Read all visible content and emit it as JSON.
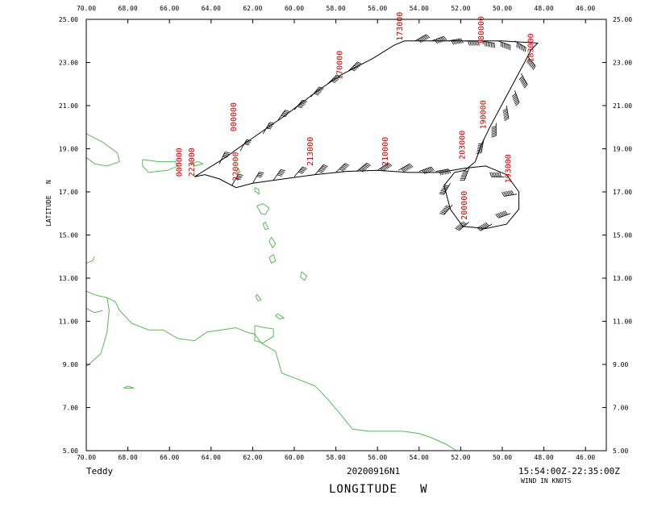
{
  "storm_name": "Teddy",
  "flight_id": "20200916N1",
  "time_range": "15:54:00Z-22:35:00Z",
  "wind_units": "WIND IN KNOTS",
  "xlabel": "LONGITUDE   W",
  "ylabel": "LATITUDE   N",
  "colors": {
    "coast": "#5cb85c",
    "track": "#000000",
    "labels": "#cc0000",
    "frame": "#000000"
  },
  "chart_data": {
    "type": "map",
    "xlim": [
      70,
      45
    ],
    "ylim": [
      5,
      25
    ],
    "x_ticks": [
      "70.00",
      "68.00",
      "66.00",
      "64.00",
      "62.00",
      "60.00",
      "58.00",
      "56.00",
      "54.00",
      "52.00",
      "50.00",
      "48.00",
      "46.00"
    ],
    "y_ticks": [
      "5.00",
      "7.00",
      "9.00",
      "11.00",
      "13.00",
      "15.00",
      "17.00",
      "19.00",
      "21.00",
      "23.00",
      "25.00"
    ],
    "time_labels": [
      {
        "text": "000000",
        "lon": 62.8,
        "lat": 19.8
      },
      {
        "text": "223000",
        "lon": 64.8,
        "lat": 17.7
      },
      {
        "text": "000000",
        "lon": 65.4,
        "lat": 17.7
      },
      {
        "text": "220000",
        "lon": 62.7,
        "lat": 17.5
      },
      {
        "text": "213000",
        "lon": 59.1,
        "lat": 18.2
      },
      {
        "text": "210000",
        "lon": 55.5,
        "lat": 18.2
      },
      {
        "text": "203000",
        "lon": 51.8,
        "lat": 18.5
      },
      {
        "text": "200000",
        "lon": 51.7,
        "lat": 15.7
      },
      {
        "text": "193000",
        "lon": 49.6,
        "lat": 17.4
      },
      {
        "text": "190000",
        "lon": 50.8,
        "lat": 19.9
      },
      {
        "text": "183000",
        "lon": 48.5,
        "lat": 23.0
      },
      {
        "text": "180000",
        "lon": 50.9,
        "lat": 23.8
      },
      {
        "text": "173000",
        "lon": 54.8,
        "lat": 24.0
      },
      {
        "text": "170000",
        "lon": 57.7,
        "lat": 22.2
      }
    ],
    "track": [
      [
        64.8,
        17.7
      ],
      [
        63.3,
        18.6
      ],
      [
        62.3,
        19.3
      ],
      [
        60.5,
        20.5
      ],
      [
        59.0,
        21.6
      ],
      [
        57.8,
        22.4
      ],
      [
        57.0,
        22.8
      ],
      [
        56.2,
        23.2
      ],
      [
        55.2,
        23.8
      ],
      [
        54.7,
        24.0
      ],
      [
        52.5,
        24.0
      ],
      [
        50.0,
        24.0
      ],
      [
        48.3,
        23.9
      ],
      [
        48.6,
        23.6
      ],
      [
        49.6,
        21.8
      ],
      [
        50.6,
        20.0
      ],
      [
        51.0,
        19.2
      ],
      [
        51.3,
        18.4
      ],
      [
        51.8,
        18.0
      ],
      [
        52.3,
        17.9
      ],
      [
        52.8,
        17.3
      ],
      [
        52.5,
        16.2
      ],
      [
        51.9,
        15.4
      ],
      [
        50.8,
        15.3
      ],
      [
        49.8,
        15.5
      ],
      [
        49.2,
        16.2
      ],
      [
        49.2,
        17.0
      ],
      [
        49.8,
        17.8
      ],
      [
        50.8,
        18.2
      ],
      [
        51.8,
        18.1
      ],
      [
        53.0,
        17.9
      ],
      [
        54.5,
        17.9
      ],
      [
        56.0,
        18.0
      ],
      [
        57.5,
        17.95
      ],
      [
        59.0,
        17.8
      ],
      [
        60.5,
        17.6
      ],
      [
        62.0,
        17.4
      ],
      [
        62.8,
        17.2
      ],
      [
        63.6,
        17.6
      ],
      [
        64.3,
        17.8
      ],
      [
        64.8,
        17.7
      ]
    ],
    "winds": [
      [
        63.6,
        18.3,
        25,
        40
      ],
      [
        62.6,
        18.9,
        30,
        45
      ],
      [
        61.5,
        19.7,
        30,
        50
      ],
      [
        60.8,
        20.3,
        35,
        50
      ],
      [
        60.0,
        20.8,
        40,
        60
      ],
      [
        59.2,
        21.4,
        40,
        60
      ],
      [
        58.4,
        22.0,
        45,
        65
      ],
      [
        57.4,
        22.6,
        45,
        70
      ],
      [
        54.2,
        24.0,
        60,
        110
      ],
      [
        53.4,
        24.0,
        70,
        110
      ],
      [
        52.6,
        24.0,
        80,
        110
      ],
      [
        51.8,
        24.0,
        90,
        120
      ],
      [
        51.0,
        24.0,
        100,
        120
      ],
      [
        50.2,
        24.0,
        110,
        130
      ],
      [
        49.4,
        24.0,
        120,
        140
      ],
      [
        48.8,
        23.3,
        140,
        160
      ],
      [
        49.1,
        22.5,
        150,
        180
      ],
      [
        49.4,
        21.7,
        160,
        200
      ],
      [
        49.8,
        21.0,
        170,
        220
      ],
      [
        50.3,
        20.2,
        180,
        230
      ],
      [
        50.9,
        19.4,
        190,
        240
      ],
      [
        51.6,
        18.1,
        200,
        250
      ],
      [
        52.5,
        17.4,
        210,
        260
      ],
      [
        52.4,
        16.4,
        220,
        270
      ],
      [
        51.6,
        15.6,
        230,
        280
      ],
      [
        50.5,
        15.5,
        240,
        290
      ],
      [
        49.6,
        16.0,
        250,
        300
      ],
      [
        49.3,
        16.9,
        260,
        310
      ],
      [
        49.9,
        17.7,
        270,
        320
      ],
      [
        53.2,
        17.95,
        80,
        110
      ],
      [
        54.0,
        17.95,
        70,
        100
      ],
      [
        55.0,
        18.0,
        60,
        90
      ],
      [
        56.0,
        18.0,
        55,
        80
      ],
      [
        57.0,
        17.95,
        50,
        70
      ],
      [
        58.0,
        17.9,
        45,
        60
      ],
      [
        59.0,
        17.8,
        40,
        60
      ],
      [
        60.0,
        17.7,
        40,
        50
      ],
      [
        61.0,
        17.55,
        35,
        50
      ],
      [
        62.0,
        17.4,
        30,
        40
      ],
      [
        63.0,
        17.3,
        30,
        40
      ]
    ],
    "coastlines": [
      [
        [
          67.3,
          18.5
        ],
        [
          66.5,
          18.4
        ],
        [
          65.7,
          18.4
        ],
        [
          65.6,
          18.2
        ],
        [
          66.1,
          18.0
        ],
        [
          67.0,
          17.9
        ],
        [
          67.3,
          18.2
        ],
        [
          67.3,
          18.5
        ]
      ],
      [
        [
          70.0,
          19.7
        ],
        [
          69.2,
          19.3
        ],
        [
          68.5,
          18.8
        ],
        [
          68.4,
          18.4
        ],
        [
          69.0,
          18.2
        ],
        [
          69.6,
          18.3
        ],
        [
          70.0,
          18.6
        ]
      ],
      [
        [
          65.0,
          18.35
        ],
        [
          64.6,
          18.4
        ],
        [
          64.4,
          18.3
        ],
        [
          64.8,
          18.2
        ],
        [
          65.0,
          18.35
        ]
      ],
      [
        [
          62.8,
          17.9
        ],
        [
          62.6,
          17.9
        ],
        [
          62.7,
          18.1
        ],
        [
          62.8,
          17.9
        ]
      ],
      [
        [
          61.9,
          17.2
        ],
        [
          61.7,
          17.1
        ],
        [
          61.7,
          16.9
        ],
        [
          61.9,
          17.05
        ],
        [
          61.9,
          17.2
        ]
      ],
      [
        [
          61.8,
          16.35
        ],
        [
          61.5,
          16.45
        ],
        [
          61.2,
          16.25
        ],
        [
          61.4,
          15.95
        ],
        [
          61.6,
          16.0
        ],
        [
          61.8,
          16.35
        ]
      ],
      [
        [
          61.4,
          15.6
        ],
        [
          61.25,
          15.3
        ],
        [
          61.4,
          15.25
        ],
        [
          61.5,
          15.5
        ],
        [
          61.4,
          15.6
        ]
      ],
      [
        [
          61.1,
          14.9
        ],
        [
          60.9,
          14.6
        ],
        [
          61.05,
          14.4
        ],
        [
          61.2,
          14.7
        ],
        [
          61.1,
          14.9
        ]
      ],
      [
        [
          61.0,
          14.1
        ],
        [
          60.9,
          13.8
        ],
        [
          61.1,
          13.7
        ],
        [
          61.2,
          13.95
        ],
        [
          61.0,
          14.1
        ]
      ],
      [
        [
          59.65,
          13.3
        ],
        [
          59.4,
          13.1
        ],
        [
          59.5,
          12.9
        ],
        [
          59.7,
          13.05
        ],
        [
          59.65,
          13.3
        ]
      ],
      [
        [
          61.8,
          12.25
        ],
        [
          61.6,
          12.0
        ],
        [
          61.75,
          11.95
        ],
        [
          61.85,
          12.15
        ],
        [
          61.8,
          12.25
        ]
      ],
      [
        [
          60.8,
          11.35
        ],
        [
          60.5,
          11.15
        ],
        [
          60.7,
          11.1
        ],
        [
          60.9,
          11.25
        ],
        [
          60.8,
          11.35
        ]
      ],
      [
        [
          61.9,
          10.8
        ],
        [
          61.4,
          10.7
        ],
        [
          61.0,
          10.65
        ],
        [
          61.0,
          10.3
        ],
        [
          61.5,
          10.0
        ],
        [
          61.9,
          10.1
        ],
        [
          61.9,
          10.5
        ],
        [
          61.9,
          10.8
        ]
      ],
      [
        [
          70.0,
          12.4
        ],
        [
          69.5,
          12.2
        ],
        [
          69.0,
          12.1
        ],
        [
          68.6,
          11.9
        ],
        [
          68.4,
          11.5
        ],
        [
          68.2,
          11.3
        ],
        [
          67.8,
          10.9
        ],
        [
          67.0,
          10.6
        ],
        [
          66.3,
          10.6
        ],
        [
          65.6,
          10.2
        ],
        [
          64.8,
          10.1
        ],
        [
          64.2,
          10.5
        ],
        [
          63.5,
          10.6
        ],
        [
          62.8,
          10.7
        ],
        [
          62.3,
          10.5
        ],
        [
          61.9,
          10.4
        ],
        [
          61.6,
          10.0
        ],
        [
          60.9,
          9.6
        ],
        [
          60.6,
          8.6
        ],
        [
          59.8,
          8.3
        ],
        [
          59.0,
          8.0
        ],
        [
          58.4,
          7.4
        ],
        [
          57.7,
          6.6
        ],
        [
          57.2,
          6.0
        ],
        [
          56.4,
          5.9
        ],
        [
          55.6,
          5.9
        ],
        [
          54.8,
          5.9
        ],
        [
          54.0,
          5.8
        ],
        [
          53.4,
          5.6
        ],
        [
          52.7,
          5.3
        ],
        [
          52.2,
          5.0
        ]
      ],
      [
        [
          69.0,
          12.1
        ],
        [
          68.9,
          11.5
        ],
        [
          69.0,
          10.5
        ],
        [
          69.3,
          9.5
        ],
        [
          70.0,
          8.9
        ]
      ],
      [
        [
          70.0,
          11.6
        ],
        [
          69.6,
          11.4
        ],
        [
          69.2,
          11.5
        ]
      ],
      [
        [
          68.0,
          8.0
        ],
        [
          67.7,
          7.9
        ],
        [
          68.2,
          7.9
        ],
        [
          68.0,
          8.0
        ]
      ],
      [
        [
          70.0,
          13.7
        ],
        [
          69.7,
          13.8
        ],
        [
          69.6,
          14.0
        ]
      ]
    ]
  }
}
